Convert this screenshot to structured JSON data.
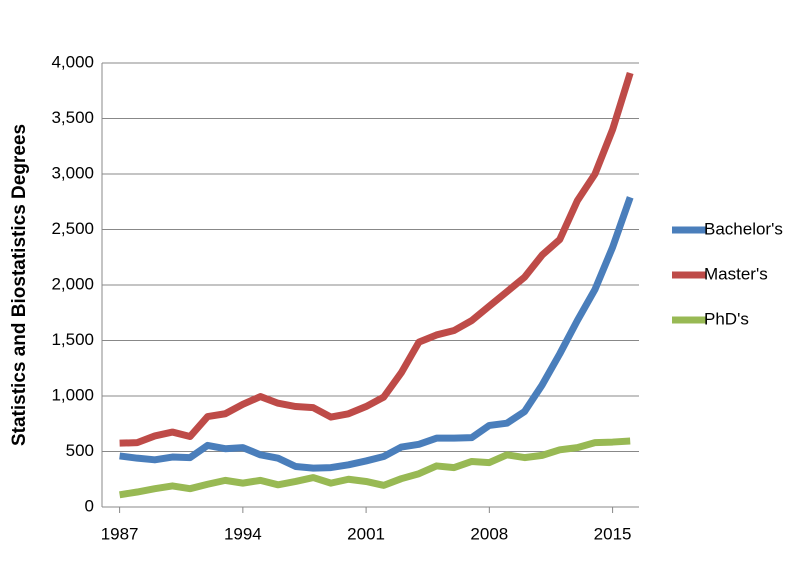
{
  "chart_data": {
    "type": "line",
    "y_label": "Statistics and Biostatistics Degrees",
    "x": [
      1987,
      1988,
      1989,
      1990,
      1991,
      1992,
      1993,
      1994,
      1995,
      1996,
      1997,
      1998,
      1999,
      2000,
      2001,
      2002,
      2003,
      2004,
      2005,
      2006,
      2007,
      2008,
      2009,
      2010,
      2011,
      2012,
      2013,
      2014,
      2015,
      2016
    ],
    "series": [
      {
        "name": "Bachelor's",
        "color": "#4a7ebb",
        "values": [
          460,
          440,
          425,
          450,
          445,
          555,
          525,
          535,
          470,
          440,
          365,
          350,
          355,
          380,
          415,
          455,
          540,
          565,
          620,
          620,
          625,
          735,
          755,
          860,
          1100,
          1380,
          1680,
          1960,
          2340,
          2790
        ]
      },
      {
        "name": "Master's",
        "color": "#be4b48",
        "values": [
          575,
          580,
          640,
          675,
          635,
          815,
          840,
          925,
          995,
          935,
          905,
          895,
          810,
          840,
          905,
          990,
          1210,
          1485,
          1550,
          1590,
          1680,
          1810,
          1940,
          2070,
          2270,
          2410,
          2760,
          3000,
          3400,
          3910
        ]
      },
      {
        "name": "PhD's",
        "color": "#98b954",
        "values": [
          110,
          135,
          165,
          190,
          165,
          205,
          240,
          215,
          240,
          200,
          230,
          265,
          215,
          250,
          230,
          195,
          255,
          300,
          370,
          355,
          410,
          400,
          470,
          445,
          465,
          515,
          535,
          580,
          585,
          595
        ]
      }
    ],
    "xlim": [
      1986,
      2016.5
    ],
    "xticks": [
      1987,
      1994,
      2001,
      2008,
      2015
    ],
    "ylim": [
      0,
      4000
    ],
    "yticks": [
      0,
      500,
      {
        "value": 1000,
        "label": "1,000"
      },
      {
        "value": 1500,
        "label": "1,500"
      },
      {
        "value": 2000,
        "label": "2,000"
      },
      {
        "value": 2500,
        "label": "2,500"
      },
      {
        "value": 3000,
        "label": "3,000"
      },
      {
        "value": 3500,
        "label": "3,500"
      },
      {
        "value": 4000,
        "label": "4,000"
      }
    ],
    "grid": true,
    "legend": "right"
  }
}
